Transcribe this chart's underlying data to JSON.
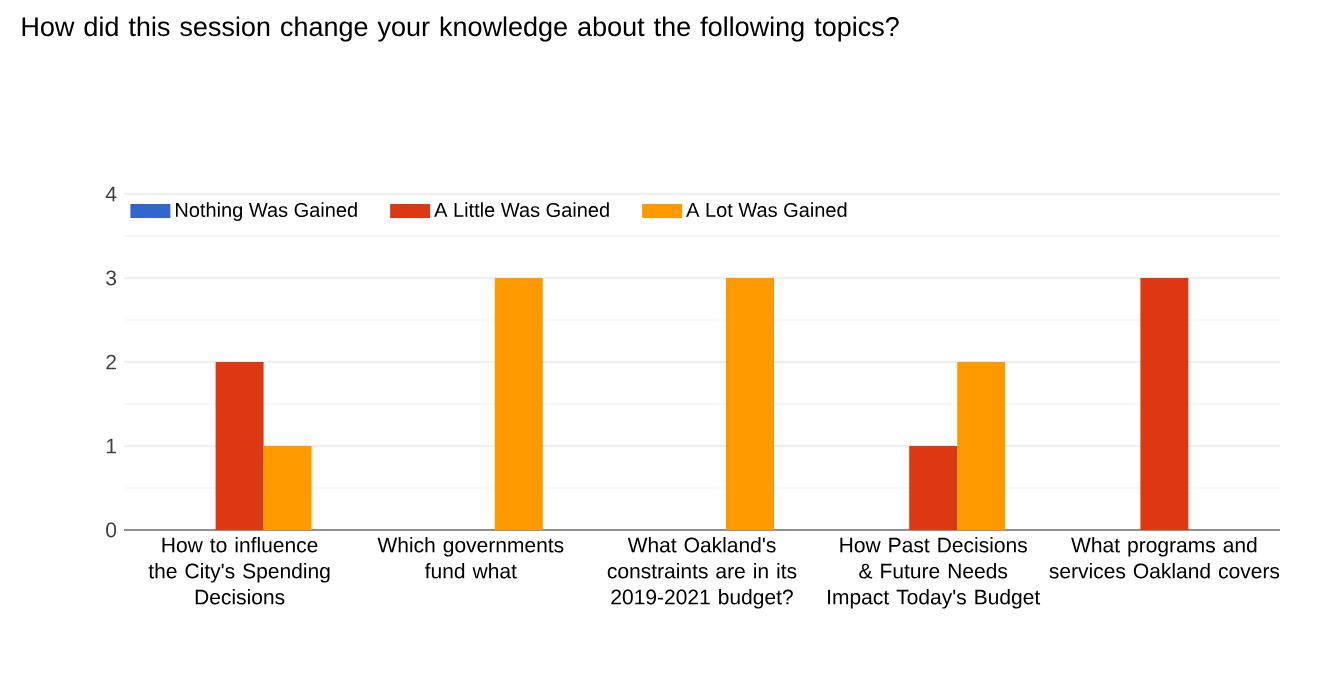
{
  "chart_data": {
    "type": "bar",
    "title": "How did this session change your knowledge about the following topics?",
    "categories": [
      "How to influence the City's Spending Decisions",
      "Which governments fund what",
      "What Oakland's constraints are in its 2019-2021 budget?",
      "How Past Decisions & Future Needs Impact Today's Budget",
      "What programs and services Oakland covers"
    ],
    "series": [
      {
        "name": "Nothing Was Gained",
        "color": "#3366cc",
        "values": [
          0,
          0,
          0,
          0,
          0
        ]
      },
      {
        "name": "A Little Was Gained",
        "color": "#dc3912",
        "values": [
          2,
          0,
          0,
          1,
          3
        ]
      },
      {
        "name": "A Lot Was Gained",
        "color": "#ff9900",
        "values": [
          1,
          3,
          3,
          2,
          0
        ]
      }
    ],
    "ylim": [
      0,
      4
    ],
    "yticks": [
      0,
      1,
      2,
      3,
      4
    ],
    "grid": "y",
    "legend": "top"
  }
}
